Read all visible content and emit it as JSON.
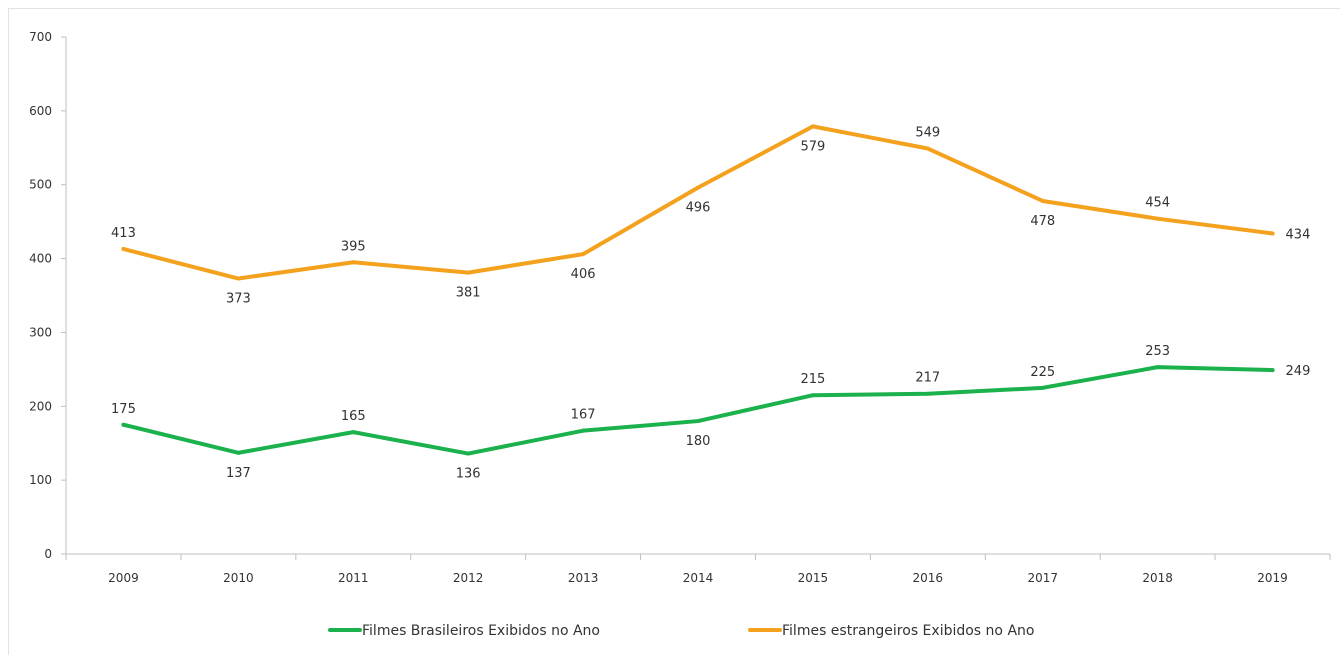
{
  "chart_data": {
    "type": "line",
    "categories": [
      "2009",
      "2010",
      "2011",
      "2012",
      "2013",
      "2014",
      "2015",
      "2016",
      "2017",
      "2018",
      "2019"
    ],
    "series": [
      {
        "name": "Filmes Brasileiros Exibidos no Ano",
        "color": "#1bb14c",
        "values": [
          175,
          137,
          165,
          136,
          167,
          180,
          215,
          217,
          225,
          253,
          249
        ],
        "label_position": [
          "above",
          "below",
          "above",
          "below",
          "above",
          "below",
          "above",
          "above",
          "above",
          "above",
          "right"
        ]
      },
      {
        "name": "Filmes estrangeiros Exibidos no Ano",
        "color": "#f4a11e",
        "values": [
          413,
          373,
          395,
          381,
          406,
          496,
          579,
          549,
          478,
          454,
          434
        ],
        "label_position": [
          "above",
          "below",
          "above",
          "below",
          "below",
          "below",
          "below",
          "above",
          "below",
          "above",
          "right"
        ]
      }
    ],
    "yticks": [
      0,
      100,
      200,
      300,
      400,
      500,
      600,
      700
    ],
    "ylim": [
      0,
      700
    ],
    "grid": false,
    "legend": "bottom",
    "title": "",
    "xlabel": "",
    "ylabel": ""
  }
}
